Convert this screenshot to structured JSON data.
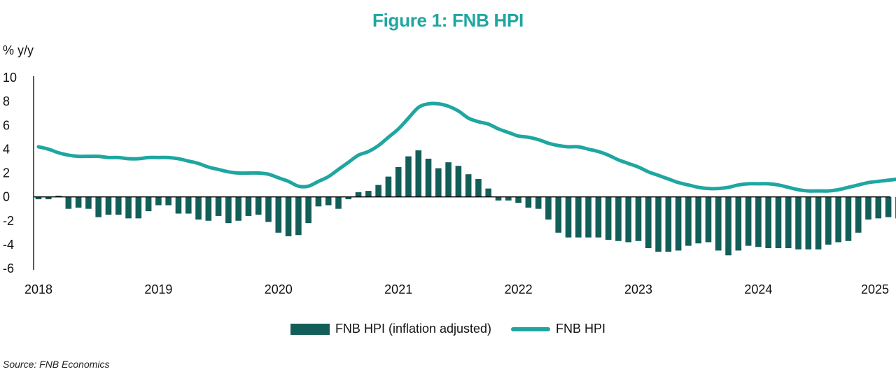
{
  "title": "Figure 1: FNB HPI",
  "source": "Source: FNB Economics",
  "chart_data": {
    "type": "bar+line",
    "ylabel": "% y/y",
    "ylim": [
      -6,
      10
    ],
    "yticks": [
      10,
      8,
      6,
      4,
      2,
      0,
      -2,
      -4,
      -6
    ],
    "xticks": [
      "2018",
      "2019",
      "2020",
      "2021",
      "2022",
      "2023",
      "2024",
      "2025"
    ],
    "x_start": "2018-01",
    "frequency": "monthly",
    "colors": {
      "bars": "#135e58",
      "line": "#1fa6a1"
    },
    "legend_position": "bottom-center",
    "grid": false,
    "series": [
      {
        "name": "FNB HPI (inflation adjusted)",
        "type": "bar",
        "values": [
          -0.2,
          -0.2,
          0.1,
          -1.0,
          -0.9,
          -1.0,
          -1.7,
          -1.5,
          -1.5,
          -1.8,
          -1.8,
          -1.2,
          -0.7,
          -0.7,
          -1.4,
          -1.4,
          -1.9,
          -2.0,
          -1.6,
          -2.2,
          -2.0,
          -1.6,
          -1.5,
          -2.1,
          -3.0,
          -3.3,
          -3.2,
          -2.2,
          -0.8,
          -0.7,
          -1.0,
          -0.2,
          0.4,
          0.5,
          1.0,
          1.7,
          2.5,
          3.4,
          3.9,
          3.2,
          2.4,
          2.9,
          2.6,
          1.9,
          1.5,
          0.7,
          -0.3,
          -0.3,
          -0.5,
          -0.9,
          -1.0,
          -1.9,
          -3.0,
          -3.4,
          -3.4,
          -3.4,
          -3.4,
          -3.6,
          -3.7,
          -3.8,
          -3.7,
          -4.3,
          -4.6,
          -4.6,
          -4.5,
          -4.1,
          -3.9,
          -3.8,
          -4.5,
          -4.9,
          -4.5,
          -4.1,
          -4.2,
          -4.3,
          -4.3,
          -4.3,
          -4.4,
          -4.4,
          -4.4,
          -4.0,
          -3.8,
          -3.7,
          -3.0,
          -1.9,
          -1.8,
          -1.7,
          -1.8
        ]
      },
      {
        "name": "FNB HPI",
        "type": "line",
        "values": [
          4.2,
          4.0,
          3.7,
          3.5,
          3.4,
          3.4,
          3.4,
          3.3,
          3.3,
          3.2,
          3.2,
          3.3,
          3.3,
          3.3,
          3.2,
          3.0,
          2.8,
          2.5,
          2.3,
          2.1,
          2.0,
          2.0,
          2.0,
          1.9,
          1.6,
          1.3,
          0.9,
          0.9,
          1.3,
          1.7,
          2.3,
          2.9,
          3.5,
          3.8,
          4.3,
          5.0,
          5.7,
          6.6,
          7.5,
          7.8,
          7.8,
          7.6,
          7.2,
          6.6,
          6.3,
          6.1,
          5.7,
          5.4,
          5.1,
          5.0,
          4.8,
          4.5,
          4.3,
          4.2,
          4.2,
          4.0,
          3.8,
          3.5,
          3.1,
          2.8,
          2.5,
          2.1,
          1.8,
          1.5,
          1.2,
          1.0,
          0.8,
          0.7,
          0.7,
          0.8,
          1.0,
          1.1,
          1.1,
          1.1,
          1.0,
          0.8,
          0.6,
          0.5,
          0.5,
          0.5,
          0.6,
          0.8,
          1.0,
          1.2,
          1.3,
          1.4,
          1.5
        ]
      }
    ]
  }
}
